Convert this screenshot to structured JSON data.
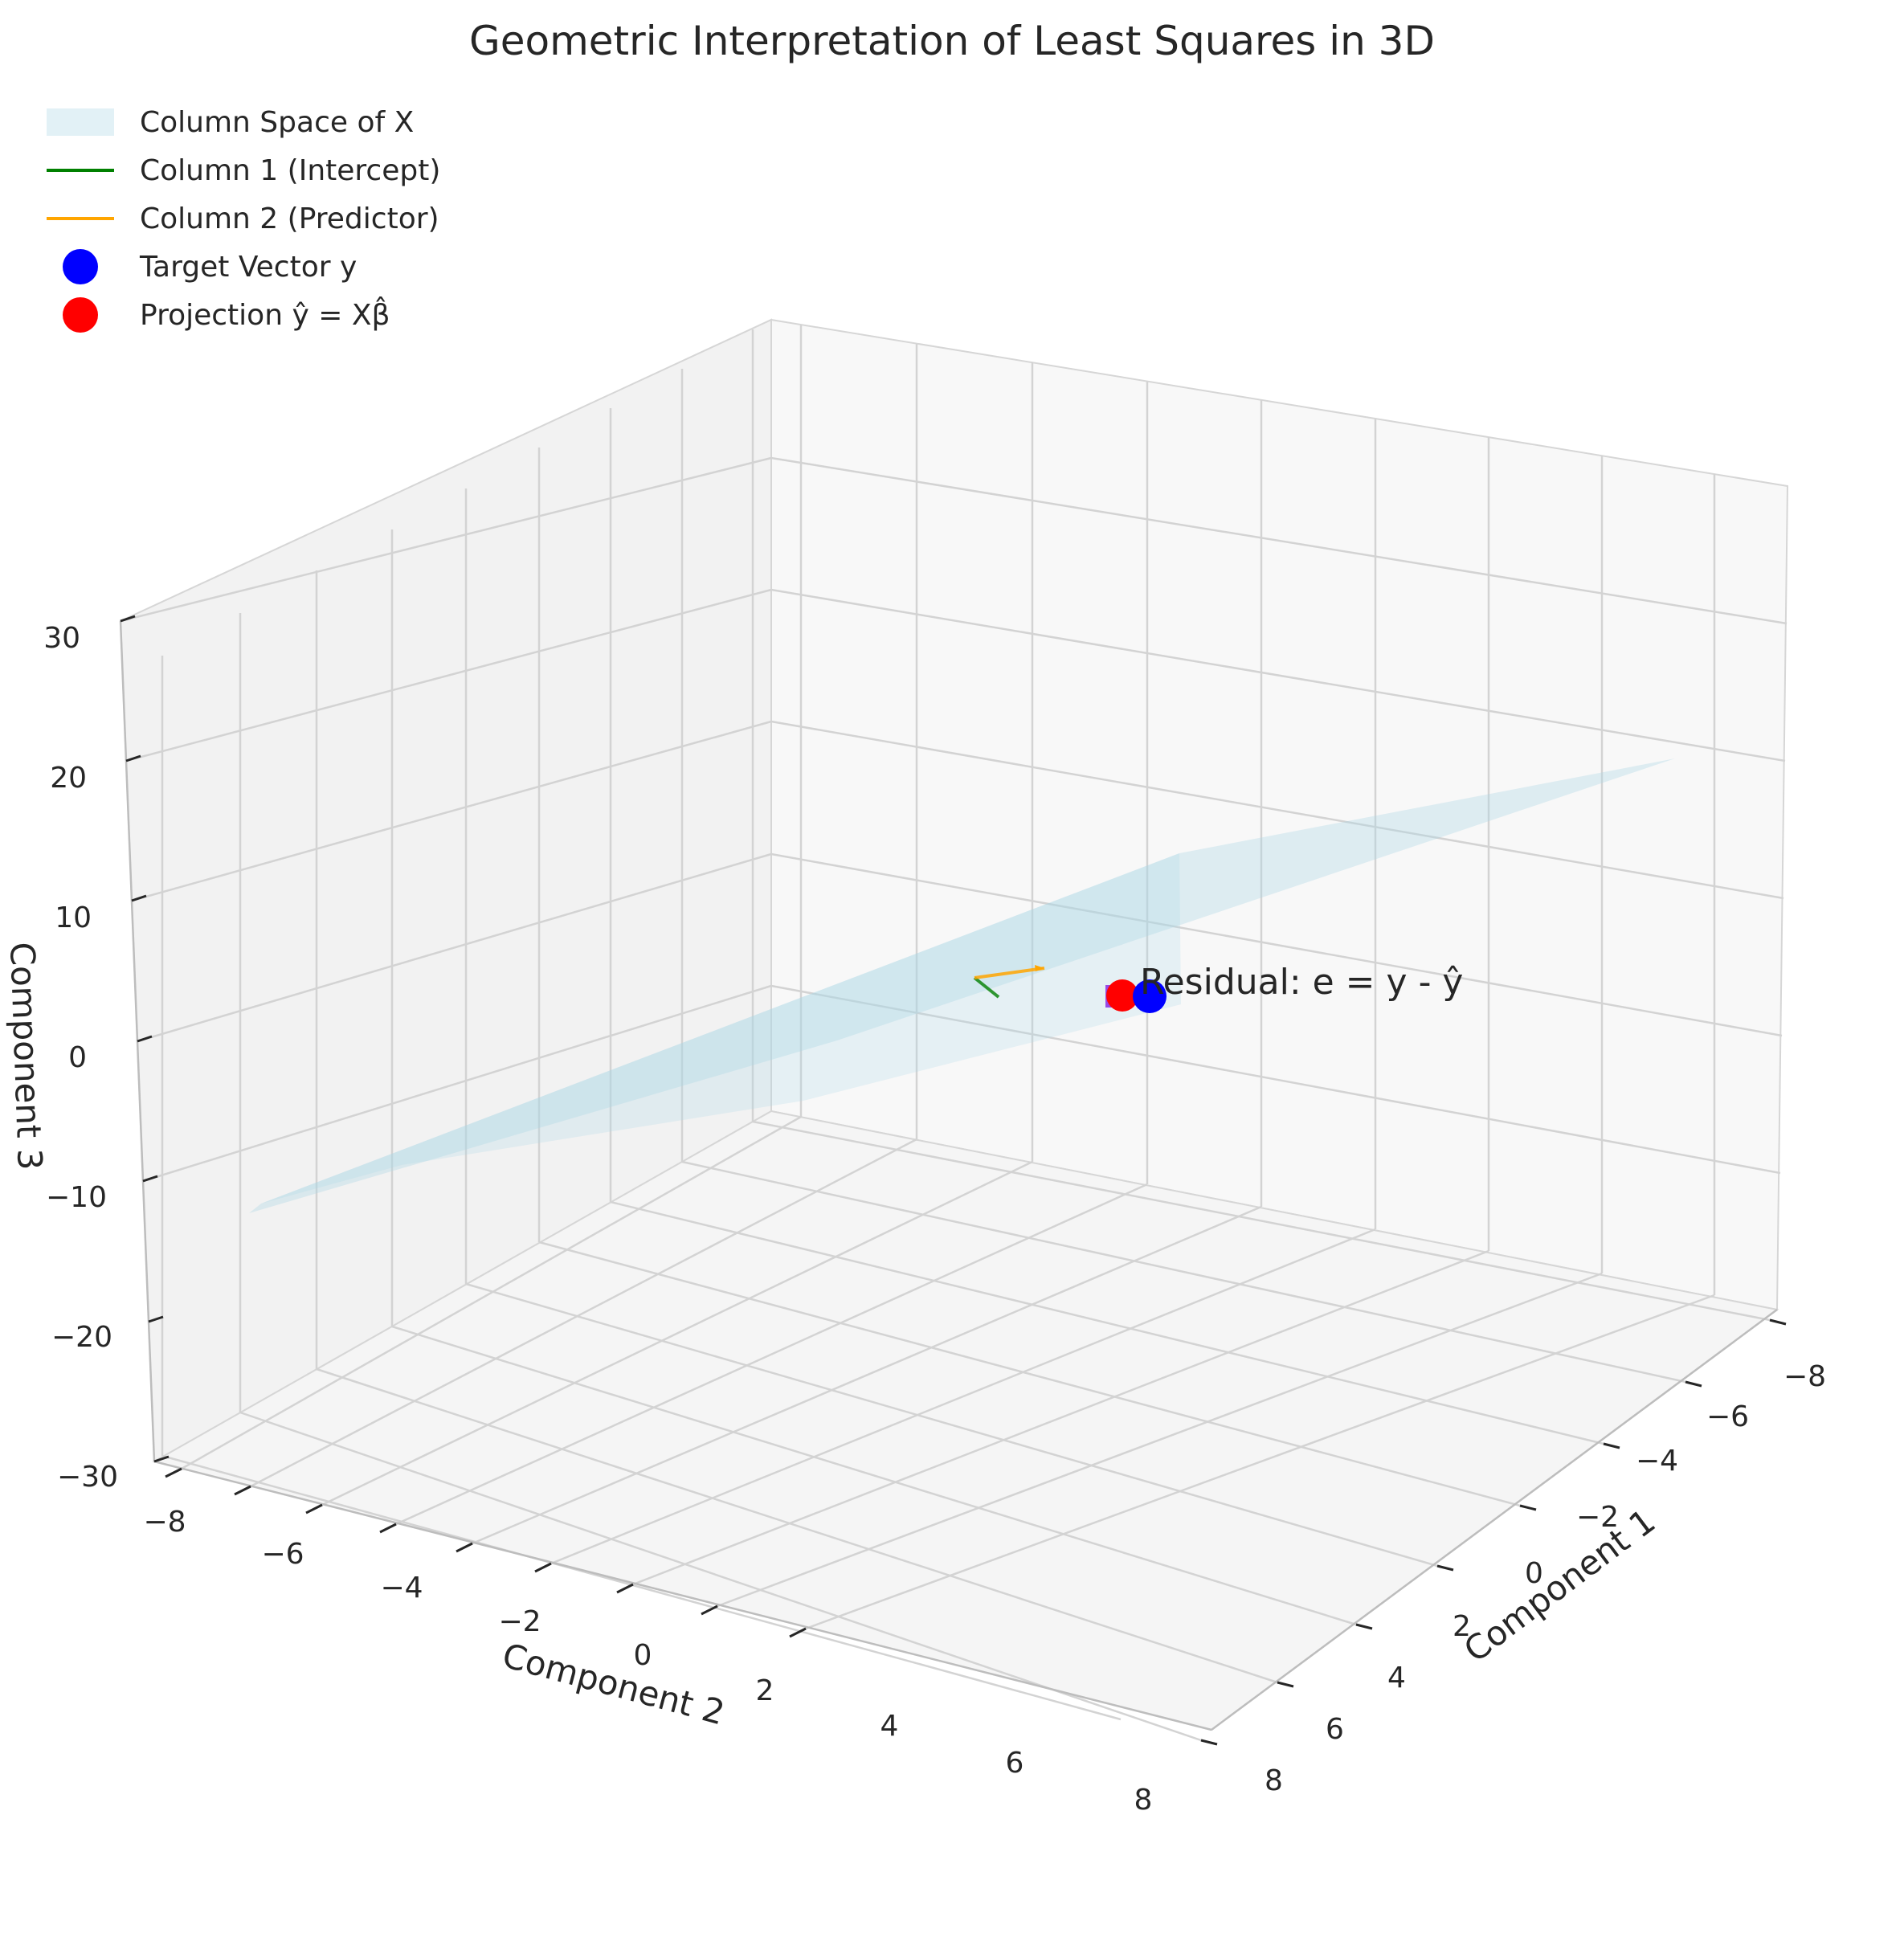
{
  "chart_data": {
    "type": "scatter",
    "title": "Geometric Interpretation of Least Squares in 3D",
    "xlabel": "Component 1",
    "ylabel": "Component 2",
    "zlabel": "Component 3",
    "xlim": [
      -8,
      8
    ],
    "ylim": [
      -8,
      8
    ],
    "zlim": [
      -30,
      30
    ],
    "x_ticks": [
      "−8",
      "−6",
      "−4",
      "−2",
      "0",
      "2",
      "4",
      "6",
      "8"
    ],
    "y_ticks": [
      "−8",
      "−6",
      "−4",
      "−2",
      "0",
      "2",
      "4",
      "6",
      "8"
    ],
    "z_ticks": [
      "−30",
      "−20",
      "−10",
      "0",
      "10",
      "20",
      "30"
    ],
    "grid": true,
    "legend_position": "top-left",
    "legend": [
      {
        "label": "Column Space of X",
        "kind": "patch",
        "color": "#add8e6"
      },
      {
        "label": "Column 1 (Intercept)",
        "kind": "line",
        "color": "#008000"
      },
      {
        "label": "Column 2 (Predictor)",
        "kind": "line",
        "color": "#ffa500"
      },
      {
        "label": "Target Vector y",
        "kind": "marker",
        "color": "#0000ff"
      },
      {
        "label": "Projection ŷ = Xβ̂",
        "kind": "marker",
        "color": "#ff0000"
      }
    ],
    "annotation": "Residual: e = y - ŷ",
    "colors": {
      "column_space": "#add8e6",
      "column1": "#008000",
      "column2": "#ffa500",
      "target": "#0000ff",
      "projection": "#ff0000",
      "residual": "#8a2be2"
    }
  }
}
